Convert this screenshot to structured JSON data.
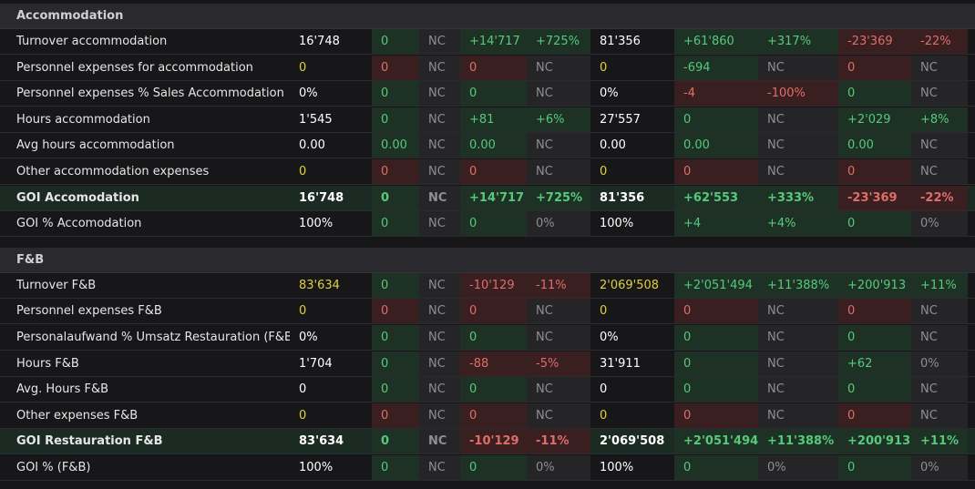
{
  "colors": {
    "pos_bg": "#1d3225",
    "neg_bg": "#3a1f20",
    "nc_bg": "#252528",
    "pos_text": "#56c97a",
    "neg_text": "#e06d6a",
    "nc_text": "#8e8e93",
    "yellow_text": "#e0d13c"
  },
  "sections": [
    {
      "title": "Accommodation",
      "rows": [
        {
          "label": "Turnover accommodation",
          "bold": false,
          "cells": [
            [
              "16'748",
              "w",
              ""
            ],
            [
              "0",
              "g",
              "g"
            ],
            [
              "NC",
              "n",
              "n"
            ],
            [
              "+14'717",
              "g",
              "g"
            ],
            [
              "+725%",
              "g",
              "g"
            ],
            [
              "81'356",
              "w",
              ""
            ],
            [
              "+61'860",
              "g",
              "g"
            ],
            [
              "+317%",
              "g",
              "g"
            ],
            [
              "-23'369",
              "r",
              "r"
            ],
            [
              "-22%",
              "r",
              "r"
            ]
          ]
        },
        {
          "label": "Personnel expenses for accommodation",
          "bold": false,
          "cells": [
            [
              "0",
              "y",
              ""
            ],
            [
              "0",
              "r",
              "r"
            ],
            [
              "NC",
              "n",
              "n"
            ],
            [
              "0",
              "r",
              "r"
            ],
            [
              "NC",
              "n",
              "n"
            ],
            [
              "0",
              "y",
              ""
            ],
            [
              "-694",
              "g",
              "g"
            ],
            [
              "NC",
              "n",
              "n"
            ],
            [
              "0",
              "r",
              "r"
            ],
            [
              "NC",
              "n",
              "n"
            ]
          ]
        },
        {
          "label": "Personnel expenses % Sales Accommodation",
          "bold": false,
          "cells": [
            [
              "0%",
              "w",
              ""
            ],
            [
              "0",
              "g",
              "g"
            ],
            [
              "NC",
              "n",
              "n"
            ],
            [
              "0",
              "g",
              "g"
            ],
            [
              "NC",
              "n",
              "n"
            ],
            [
              "0%",
              "w",
              ""
            ],
            [
              "-4",
              "r",
              "r"
            ],
            [
              "-100%",
              "r",
              "r"
            ],
            [
              "0",
              "g",
              "g"
            ],
            [
              "NC",
              "n",
              "n"
            ]
          ]
        },
        {
          "label": "Hours accommodation",
          "bold": false,
          "cells": [
            [
              "1'545",
              "w",
              ""
            ],
            [
              "0",
              "g",
              "g"
            ],
            [
              "NC",
              "n",
              "n"
            ],
            [
              "+81",
              "g",
              "g"
            ],
            [
              "+6%",
              "g",
              "g"
            ],
            [
              "27'557",
              "w",
              ""
            ],
            [
              "0",
              "g",
              "g"
            ],
            [
              "NC",
              "n",
              "n"
            ],
            [
              "+2'029",
              "g",
              "g"
            ],
            [
              "+8%",
              "g",
              "g"
            ]
          ]
        },
        {
          "label": "Avg hours accommodation",
          "bold": false,
          "cells": [
            [
              "0.00",
              "w",
              ""
            ],
            [
              "0.00",
              "g",
              "g"
            ],
            [
              "NC",
              "n",
              "n"
            ],
            [
              "0.00",
              "g",
              "g"
            ],
            [
              "NC",
              "n",
              "n"
            ],
            [
              "0.00",
              "w",
              ""
            ],
            [
              "0.00",
              "g",
              "g"
            ],
            [
              "NC",
              "n",
              "n"
            ],
            [
              "0.00",
              "g",
              "g"
            ],
            [
              "NC",
              "n",
              "n"
            ]
          ]
        },
        {
          "label": "Other accommodation expenses",
          "bold": false,
          "cells": [
            [
              "0",
              "y",
              ""
            ],
            [
              "0",
              "r",
              "r"
            ],
            [
              "NC",
              "n",
              "n"
            ],
            [
              "0",
              "r",
              "r"
            ],
            [
              "NC",
              "n",
              "n"
            ],
            [
              "0",
              "y",
              ""
            ],
            [
              "0",
              "r",
              "r"
            ],
            [
              "NC",
              "n",
              "n"
            ],
            [
              "0",
              "r",
              "r"
            ],
            [
              "NC",
              "n",
              "n"
            ]
          ]
        },
        {
          "label": "GOI Accomodation",
          "bold": true,
          "cells": [
            [
              "16'748",
              "w",
              ""
            ],
            [
              "0",
              "g",
              "g"
            ],
            [
              "NC",
              "n",
              "n"
            ],
            [
              "+14'717",
              "g",
              "g"
            ],
            [
              "+725%",
              "g",
              "g"
            ],
            [
              "81'356",
              "w",
              ""
            ],
            [
              "+62'553",
              "g",
              "g"
            ],
            [
              "+333%",
              "g",
              "g"
            ],
            [
              "-23'369",
              "r",
              "r"
            ],
            [
              "-22%",
              "r",
              "r"
            ]
          ]
        },
        {
          "label": "GOI % Accomodation",
          "bold": false,
          "cells": [
            [
              "100%",
              "w",
              ""
            ],
            [
              "0",
              "g",
              "g"
            ],
            [
              "NC",
              "n",
              "n"
            ],
            [
              "0",
              "g",
              "g"
            ],
            [
              "0%",
              "n",
              "n"
            ],
            [
              "100%",
              "w",
              ""
            ],
            [
              "+4",
              "g",
              "g"
            ],
            [
              "+4%",
              "g",
              "g"
            ],
            [
              "0",
              "g",
              "g"
            ],
            [
              "0%",
              "n",
              "n"
            ]
          ]
        }
      ]
    },
    {
      "title": "F&B",
      "rows": [
        {
          "label": "Turnover F&B",
          "bold": false,
          "cells": [
            [
              "83'634",
              "y",
              ""
            ],
            [
              "0",
              "g",
              "g"
            ],
            [
              "NC",
              "n",
              "n"
            ],
            [
              "-10'129",
              "r",
              "r"
            ],
            [
              "-11%",
              "r",
              "r"
            ],
            [
              "2'069'508",
              "y",
              ""
            ],
            [
              "+2'051'494",
              "g",
              "g"
            ],
            [
              "+11'388%",
              "g",
              "g"
            ],
            [
              "+200'913",
              "g",
              "g"
            ],
            [
              "+11%",
              "g",
              "g"
            ]
          ]
        },
        {
          "label": "Personnel expenses F&B",
          "bold": false,
          "cells": [
            [
              "0",
              "y",
              ""
            ],
            [
              "0",
              "r",
              "r"
            ],
            [
              "NC",
              "n",
              "n"
            ],
            [
              "0",
              "r",
              "r"
            ],
            [
              "NC",
              "n",
              "n"
            ],
            [
              "0",
              "y",
              ""
            ],
            [
              "0",
              "r",
              "r"
            ],
            [
              "NC",
              "n",
              "n"
            ],
            [
              "0",
              "r",
              "r"
            ],
            [
              "NC",
              "n",
              "n"
            ]
          ]
        },
        {
          "label": "Personalaufwand % Umsatz Restauration (F&B)",
          "bold": false,
          "cells": [
            [
              "0%",
              "w",
              ""
            ],
            [
              "0",
              "g",
              "g"
            ],
            [
              "NC",
              "n",
              "n"
            ],
            [
              "0",
              "g",
              "g"
            ],
            [
              "NC",
              "n",
              "n"
            ],
            [
              "0%",
              "w",
              ""
            ],
            [
              "0",
              "g",
              "g"
            ],
            [
              "NC",
              "n",
              "n"
            ],
            [
              "0",
              "g",
              "g"
            ],
            [
              "NC",
              "n",
              "n"
            ]
          ]
        },
        {
          "label": "Hours F&B",
          "bold": false,
          "cells": [
            [
              "1'704",
              "w",
              ""
            ],
            [
              "0",
              "g",
              "g"
            ],
            [
              "NC",
              "n",
              "n"
            ],
            [
              "-88",
              "r",
              "r"
            ],
            [
              "-5%",
              "r",
              "r"
            ],
            [
              "31'911",
              "w",
              ""
            ],
            [
              "0",
              "g",
              "g"
            ],
            [
              "NC",
              "n",
              "n"
            ],
            [
              "+62",
              "g",
              "g"
            ],
            [
              "0%",
              "n",
              "n"
            ]
          ]
        },
        {
          "label": "Avg. Hours F&B",
          "bold": false,
          "cells": [
            [
              "0",
              "w",
              ""
            ],
            [
              "0",
              "g",
              "g"
            ],
            [
              "NC",
              "n",
              "n"
            ],
            [
              "0",
              "g",
              "g"
            ],
            [
              "NC",
              "n",
              "n"
            ],
            [
              "0",
              "w",
              ""
            ],
            [
              "0",
              "g",
              "g"
            ],
            [
              "NC",
              "n",
              "n"
            ],
            [
              "0",
              "g",
              "g"
            ],
            [
              "NC",
              "n",
              "n"
            ]
          ]
        },
        {
          "label": "Other expenses F&B",
          "bold": false,
          "cells": [
            [
              "0",
              "y",
              ""
            ],
            [
              "0",
              "r",
              "r"
            ],
            [
              "NC",
              "n",
              "n"
            ],
            [
              "0",
              "r",
              "r"
            ],
            [
              "NC",
              "n",
              "n"
            ],
            [
              "0",
              "y",
              ""
            ],
            [
              "0",
              "r",
              "r"
            ],
            [
              "NC",
              "n",
              "n"
            ],
            [
              "0",
              "r",
              "r"
            ],
            [
              "NC",
              "n",
              "n"
            ]
          ]
        },
        {
          "label": "GOI Restauration F&B",
          "bold": true,
          "cells": [
            [
              "83'634",
              "w",
              ""
            ],
            [
              "0",
              "g",
              "g"
            ],
            [
              "NC",
              "n",
              "n"
            ],
            [
              "-10'129",
              "r",
              "r"
            ],
            [
              "-11%",
              "r",
              "r"
            ],
            [
              "2'069'508",
              "w",
              ""
            ],
            [
              "+2'051'494",
              "g",
              "g"
            ],
            [
              "+11'388%",
              "g",
              "g"
            ],
            [
              "+200'913",
              "g",
              "g"
            ],
            [
              "+11%",
              "g",
              "g"
            ]
          ]
        },
        {
          "label": "GOI % (F&B)",
          "bold": false,
          "cells": [
            [
              "100%",
              "w",
              ""
            ],
            [
              "0",
              "g",
              "g"
            ],
            [
              "NC",
              "n",
              "n"
            ],
            [
              "0",
              "g",
              "g"
            ],
            [
              "0%",
              "n",
              "n"
            ],
            [
              "100%",
              "w",
              ""
            ],
            [
              "0",
              "g",
              "g"
            ],
            [
              "0%",
              "n",
              "n"
            ],
            [
              "0",
              "g",
              "g"
            ],
            [
              "0%",
              "n",
              "n"
            ]
          ]
        }
      ]
    }
  ]
}
